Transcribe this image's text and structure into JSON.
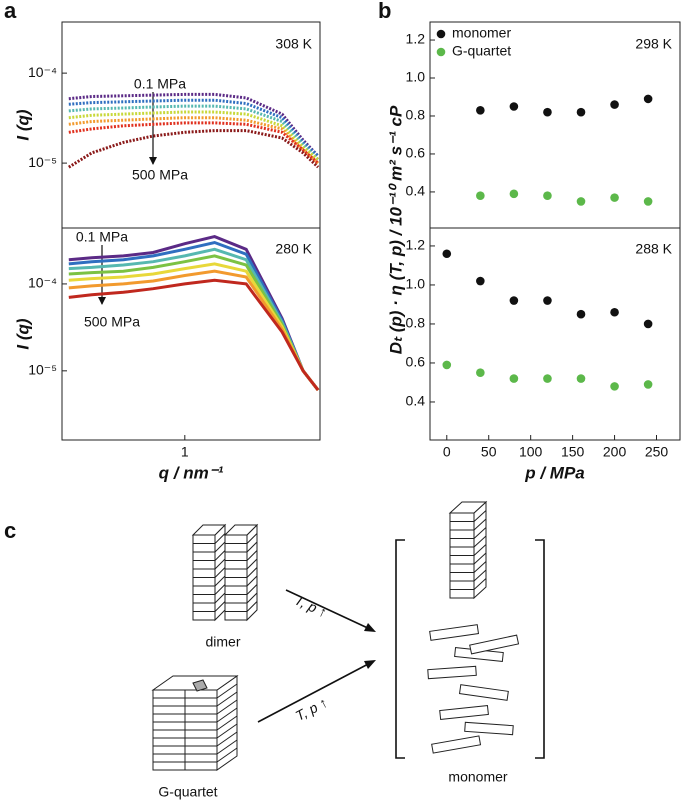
{
  "panel_labels": [
    "a",
    "b",
    "c"
  ],
  "chart_data": [
    {
      "type": "line",
      "y_label": "I (q)",
      "annotations": [
        "308 K",
        "0.1 MPa",
        "500 MPa"
      ],
      "xscale": "log",
      "yscale": "log",
      "xlim": [
        0.25,
        4.6
      ],
      "ylim": [
        1.9e-06,
        0.00037
      ],
      "yticks": [
        {
          "value": 0.0001,
          "label": "10⁻⁴"
        },
        {
          "value": 1e-05,
          "label": "10⁻⁵"
        }
      ],
      "x": [
        0.27,
        0.35,
        0.5,
        0.7,
        1,
        1.4,
        2,
        3,
        3.8,
        4.5
      ],
      "series": [
        {
          "color": "#5b2a86",
          "values": [
            5.2e-05,
            5.5e-05,
            5.6e-05,
            5.7e-05,
            5.8e-05,
            5.8e-05,
            5.3e-05,
            3.5e-05,
            1.8e-05,
            1.2e-05
          ]
        },
        {
          "color": "#2f6fc0",
          "values": [
            4.5e-05,
            4.7e-05,
            4.8e-05,
            4.9e-05,
            5e-05,
            5e-05,
            4.6e-05,
            3.2e-05,
            1.7e-05,
            1.2e-05
          ]
        },
        {
          "color": "#56b8b0",
          "values": [
            3.8e-05,
            4e-05,
            4.1e-05,
            4.2e-05,
            4.3e-05,
            4.3e-05,
            4e-05,
            2.9e-05,
            1.6e-05,
            1.1e-05
          ]
        },
        {
          "color": "#c8d83a",
          "values": [
            3.2e-05,
            3.4e-05,
            3.5e-05,
            3.6e-05,
            3.7e-05,
            3.7e-05,
            3.5e-05,
            2.6e-05,
            1.5e-05,
            1.1e-05
          ]
        },
        {
          "color": "#f29a2e",
          "values": [
            2.7e-05,
            2.9e-05,
            3e-05,
            3.1e-05,
            3.2e-05,
            3.2e-05,
            3e-05,
            2.4e-05,
            1.4e-05,
            1e-05
          ]
        },
        {
          "color": "#e0301e",
          "values": [
            2.2e-05,
            2.4e-05,
            2.6e-05,
            2.7e-05,
            2.8e-05,
            2.8e-05,
            2.7e-05,
            2.2e-05,
            1.4e-05,
            1e-05
          ]
        },
        {
          "color": "#8b1a1a",
          "values": [
            9e-06,
            1.3e-05,
            1.7e-05,
            2e-05,
            2.2e-05,
            2.3e-05,
            2.3e-05,
            1.9e-05,
            1.3e-05,
            9e-06
          ]
        }
      ]
    },
    {
      "type": "line",
      "y_label": "I (q)",
      "x_label": "q / nm⁻¹",
      "annotations": [
        "280 K",
        "0.1 MPa",
        "500 MPa"
      ],
      "xscale": "log",
      "yscale": "log",
      "xlim": [
        0.25,
        4.6
      ],
      "ylim": [
        1.6e-06,
        0.00044
      ],
      "xticks": [
        1
      ],
      "yticks": [
        {
          "value": 0.0001,
          "label": "10⁻⁴"
        },
        {
          "value": 1e-05,
          "label": "10⁻⁵"
        }
      ],
      "x": [
        0.27,
        0.35,
        0.5,
        0.7,
        1,
        1.4,
        2,
        3,
        3.8,
        4.5
      ],
      "series": [
        {
          "color": "#5b2a86",
          "values": [
            0.00019,
            0.0002,
            0.00021,
            0.00023,
            0.00029,
            0.00035,
            0.00025,
            4e-05,
            1e-05,
            6e-06
          ]
        },
        {
          "color": "#2f6fc0",
          "values": [
            0.00017,
            0.00018,
            0.00019,
            0.00021,
            0.00025,
            0.0003,
            0.00022,
            3.8e-05,
            1e-05,
            6e-06
          ]
        },
        {
          "color": "#56b8b0",
          "values": [
            0.00015,
            0.000155,
            0.000165,
            0.00018,
            0.00021,
            0.00025,
            0.00019,
            3.6e-05,
            1e-05,
            6e-06
          ]
        },
        {
          "color": "#7cc243",
          "values": [
            0.00013,
            0.000135,
            0.00014,
            0.000155,
            0.00018,
            0.00021,
            0.000165,
            3.4e-05,
            1e-05,
            6e-06
          ]
        },
        {
          "color": "#e8d83a",
          "values": [
            0.00011,
            0.000115,
            0.00012,
            0.00013,
            0.00015,
            0.00017,
            0.00014,
            3.2e-05,
            1e-05,
            6e-06
          ]
        },
        {
          "color": "#f29a2e",
          "values": [
            9e-05,
            9.5e-05,
            0.0001,
            0.000108,
            0.000125,
            0.00014,
            0.00012,
            3e-05,
            1e-05,
            6e-06
          ]
        },
        {
          "color": "#c0281e",
          "values": [
            7e-05,
            7.5e-05,
            8e-05,
            8.8e-05,
            0.0001,
            0.00011,
            0.0001,
            2.8e-05,
            1e-05,
            6e-06
          ]
        }
      ]
    },
    {
      "type": "scatter",
      "y_label": "Dₜ (p) · η (T, p) / 10⁻¹⁰ m² s⁻¹ cP",
      "annotations": [
        "298 K"
      ],
      "xlim": [
        -20,
        278
      ],
      "ylim": [
        0.21,
        1.295
      ],
      "yticks": [
        0.4,
        0.6,
        0.8,
        {
          "value": 1,
          "label": "1.0"
        },
        1.2
      ],
      "x": [
        40,
        80,
        120,
        160,
        200,
        240
      ],
      "series": [
        {
          "name": "monomer",
          "color": "#111111",
          "values": [
            0.83,
            0.85,
            0.82,
            0.82,
            0.86,
            0.89
          ]
        },
        {
          "name": "G-quartet",
          "color": "#5cb84a",
          "values": [
            0.38,
            0.39,
            0.38,
            0.35,
            0.37,
            0.35
          ]
        }
      ]
    },
    {
      "type": "scatter",
      "x_label": "p / MPa",
      "annotations": [
        "288 K"
      ],
      "xlim": [
        -20,
        278
      ],
      "ylim": [
        0.205,
        1.292
      ],
      "xticks": [
        0,
        50,
        100,
        150,
        200,
        250
      ],
      "yticks": [
        0.4,
        0.6,
        0.8,
        {
          "value": 1,
          "label": "1.0"
        },
        1.2
      ],
      "x": [
        0,
        40,
        80,
        120,
        160,
        200,
        240
      ],
      "series": [
        {
          "color": "#111111",
          "values": [
            1.16,
            1.02,
            0.92,
            0.92,
            0.85,
            0.86,
            0.8
          ]
        },
        {
          "color": "#5cb84a",
          "values": [
            0.59,
            0.55,
            0.52,
            0.52,
            0.52,
            0.48,
            0.49
          ]
        }
      ]
    }
  ],
  "diagram": {
    "labels": [
      "dimer",
      "G-quartet",
      "monomer"
    ],
    "arrows": [
      "T, p ↑",
      "T, p ↑"
    ]
  }
}
